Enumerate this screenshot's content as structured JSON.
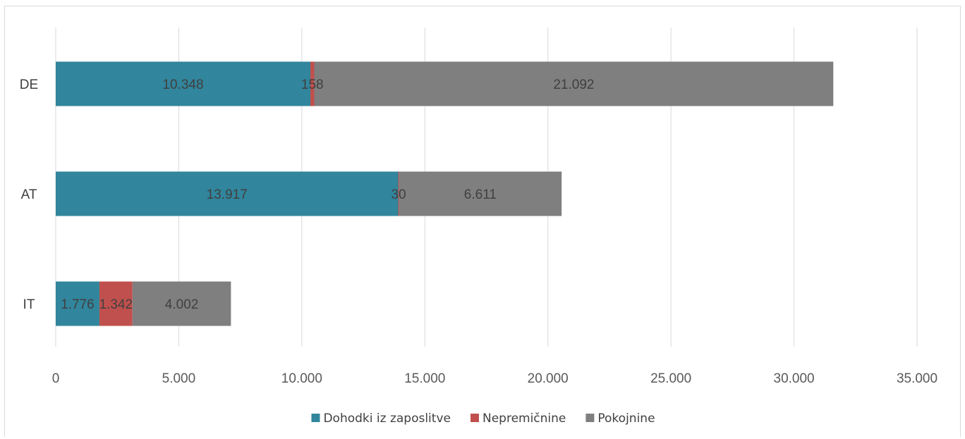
{
  "chart_data": {
    "type": "bar",
    "orientation": "horizontal",
    "stacked": true,
    "categories": [
      "DE",
      "AT",
      "IT"
    ],
    "series": [
      {
        "name": "Dohodki iz zaposlitve",
        "values": [
          10348,
          13917,
          1776
        ],
        "labels": [
          "10.348",
          "13.917",
          "1.776"
        ],
        "color": "#31859c"
      },
      {
        "name": "Nepremičnine",
        "values": [
          158,
          30,
          1342
        ],
        "labels": [
          "158",
          "30",
          "1.342"
        ],
        "color": "#c0504d"
      },
      {
        "name": "Pokojnine",
        "values": [
          21092,
          6611,
          4002
        ],
        "labels": [
          "21.092",
          "6.611",
          "4.002"
        ],
        "color": "#7f7f7f"
      }
    ],
    "xlim": [
      0,
      35000
    ],
    "ticks": [
      0,
      5000,
      10000,
      15000,
      20000,
      25000,
      30000,
      35000
    ],
    "tick_labels": [
      "0",
      "5.000",
      "10.000",
      "15.000",
      "20.000",
      "25.000",
      "30.000",
      "35.000"
    ],
    "gridlines": "vertical",
    "legend": "bottom-center"
  }
}
